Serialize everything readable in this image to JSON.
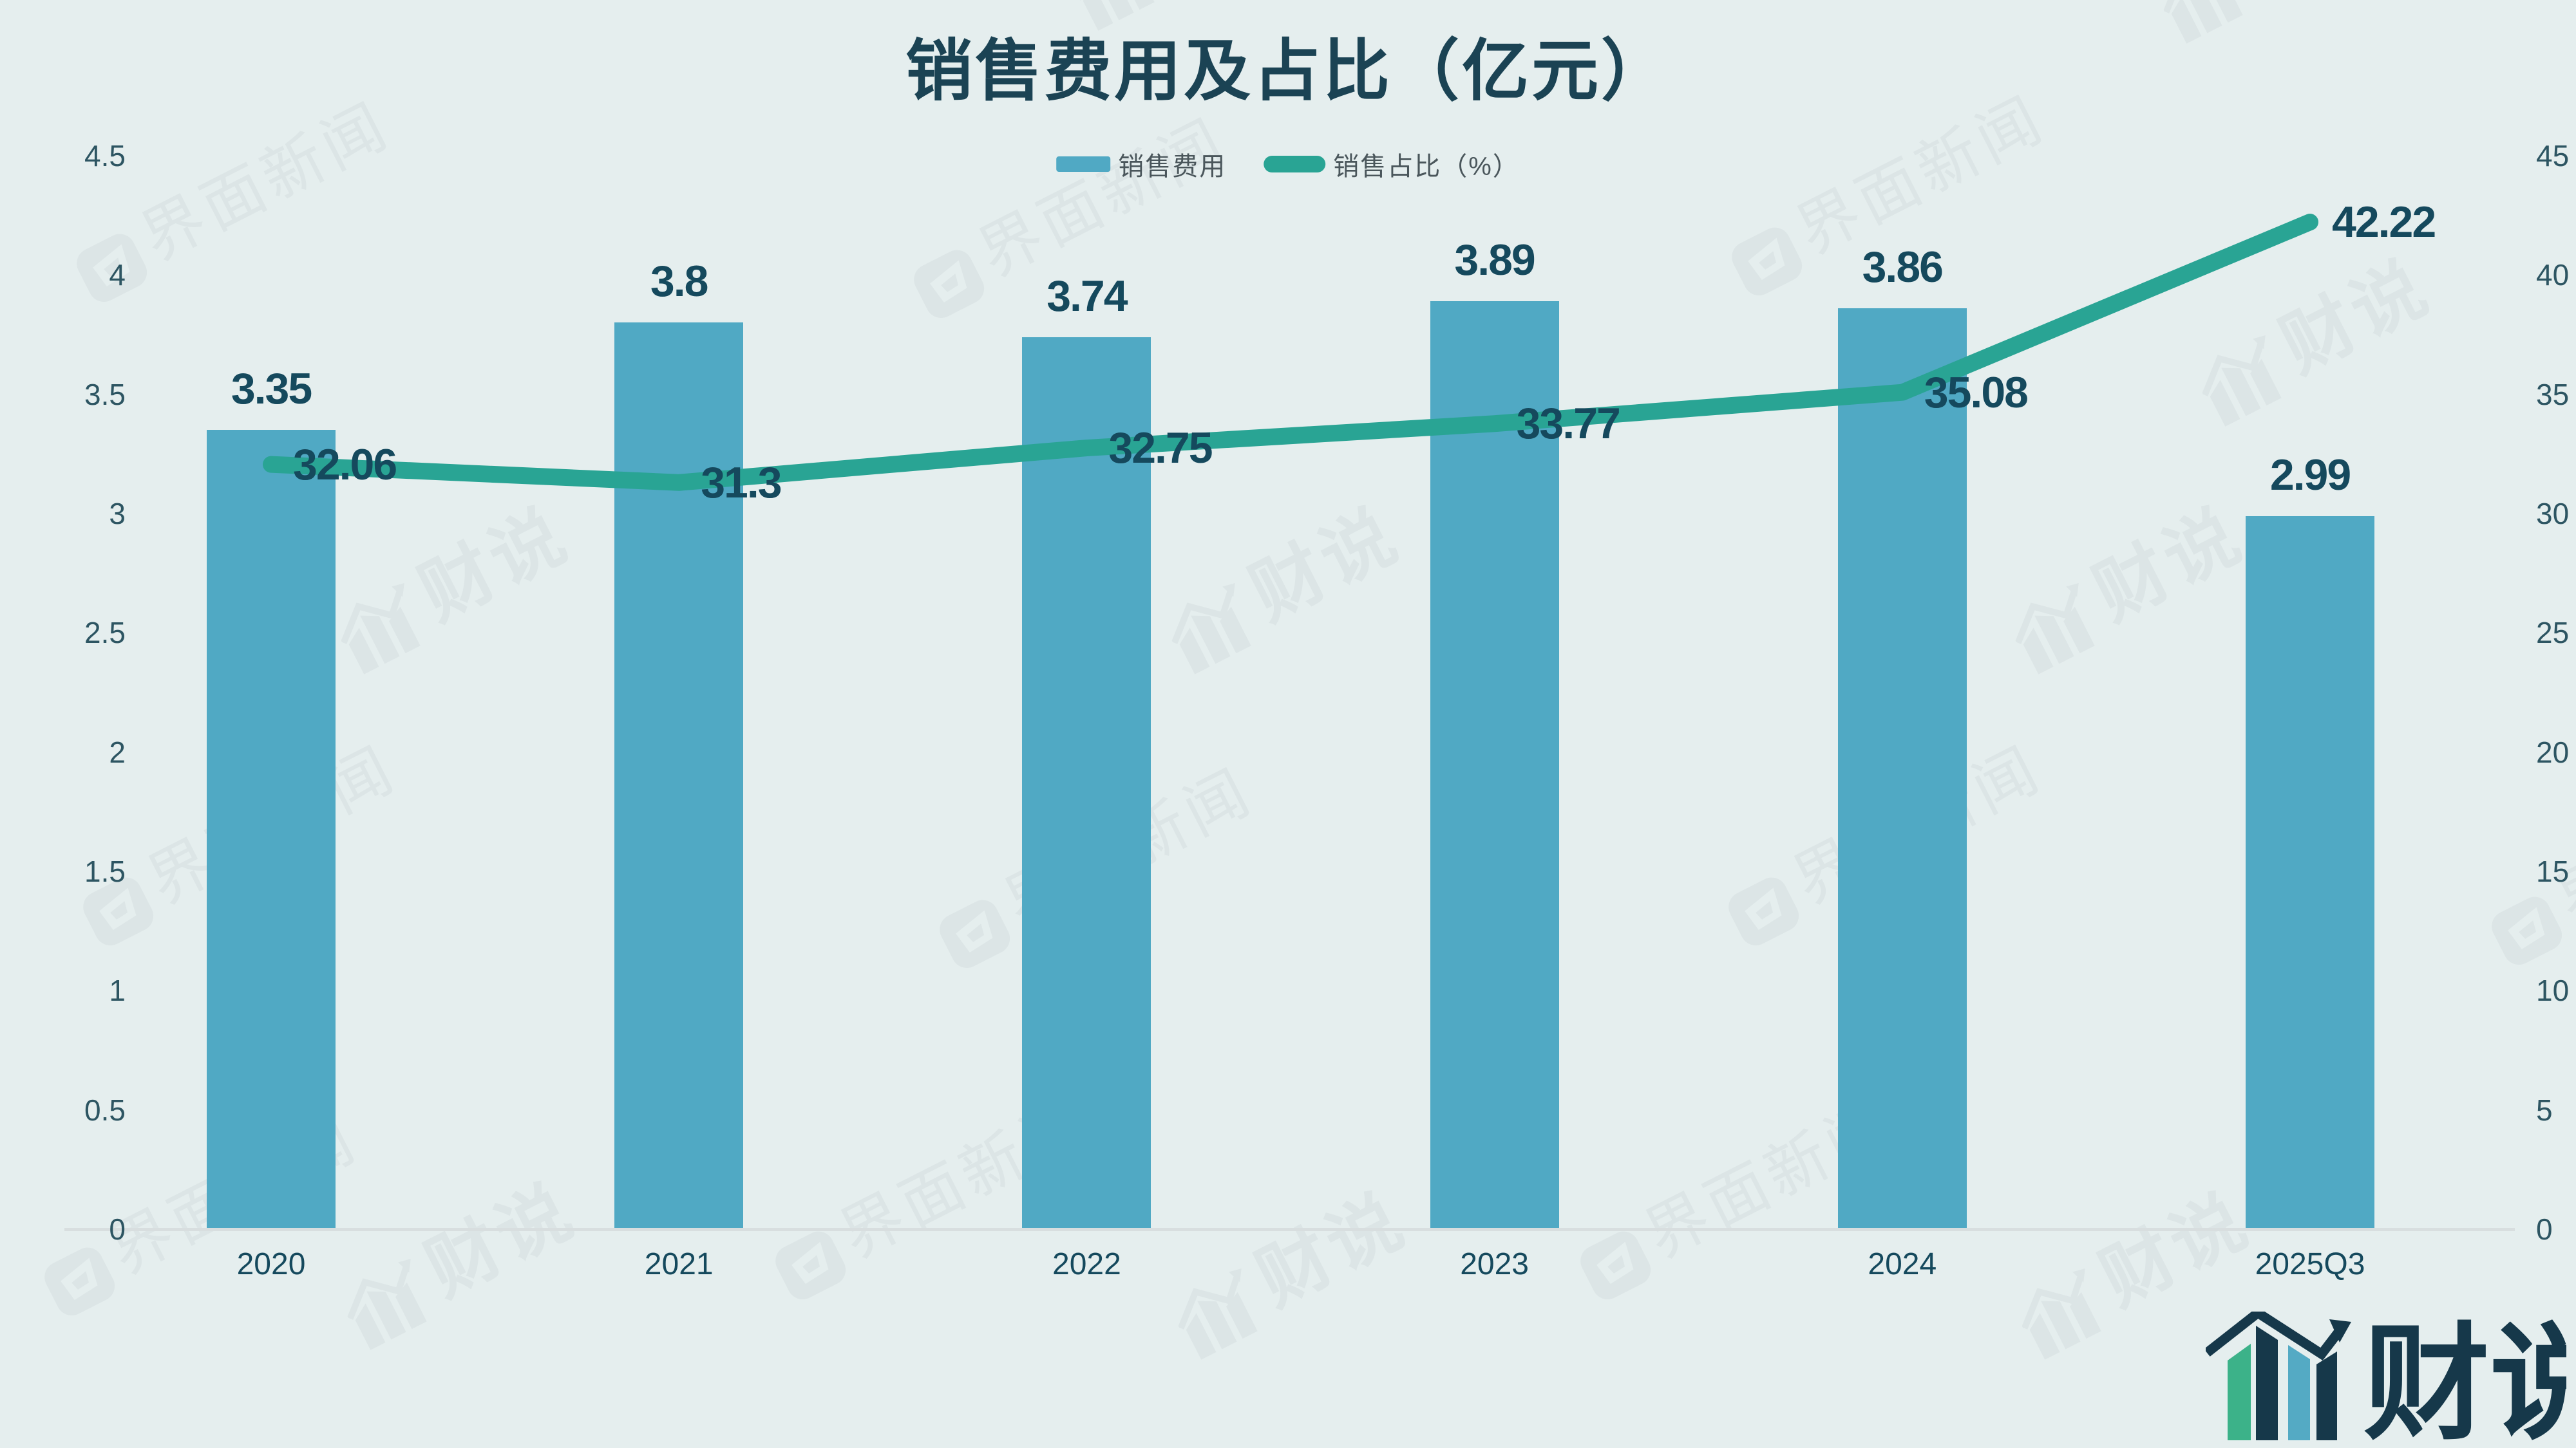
{
  "title": "销售费用及占比（亿元）",
  "legend": [
    {
      "label": "销售费用",
      "type": "bar"
    },
    {
      "label": "销售占比（%）",
      "type": "line"
    }
  ],
  "watermarks": {
    "jiemian": "界面新闻",
    "caishuo": "财说"
  },
  "logo": {
    "text": "财说"
  },
  "colors": {
    "background": "#e5eeee",
    "bar": "#50a9c4",
    "line": "#29a494",
    "title_ink": "#1b4354",
    "label_ink": "#15495d",
    "tick_ink": "#2d5562",
    "legend_text": "#4a565b",
    "axis_line": "#d8dedf",
    "watermark": "#dce5e6",
    "logo_dark": "#16384a",
    "logo_green": "#3cb289",
    "logo_blue": "#54aac4"
  },
  "chart_data": {
    "type": "bar+line",
    "title": "销售费用及占比（亿元）",
    "categories": [
      "2020",
      "2021",
      "2022",
      "2023",
      "2024",
      "2025Q3"
    ],
    "series": [
      {
        "name": "销售费用",
        "type": "bar",
        "axis": "left",
        "values": [
          3.35,
          3.8,
          3.74,
          3.89,
          3.86,
          2.99
        ],
        "labels": [
          "3.35",
          "3.8",
          "3.74",
          "3.89",
          "3.86",
          "2.99"
        ]
      },
      {
        "name": "销售占比（%）",
        "type": "line",
        "axis": "right",
        "values": [
          32.06,
          31.3,
          32.75,
          33.77,
          35.08,
          42.22
        ],
        "labels": [
          "32.06",
          "31.3",
          "32.75",
          "33.77",
          "35.08",
          "42.22"
        ]
      }
    ],
    "left_axis": {
      "min": 0,
      "max": 4.5,
      "step": 0.5,
      "ticks": [
        "0",
        "0.5",
        "1",
        "1.5",
        "2",
        "2.5",
        "3",
        "3.5",
        "4",
        "4.5"
      ]
    },
    "right_axis": {
      "min": 0,
      "max": 45,
      "step": 5,
      "ticks": [
        "0",
        "5",
        "10",
        "15",
        "20",
        "25",
        "30",
        "35",
        "40",
        "45"
      ]
    },
    "grid": false,
    "legend_position": "top-center"
  }
}
